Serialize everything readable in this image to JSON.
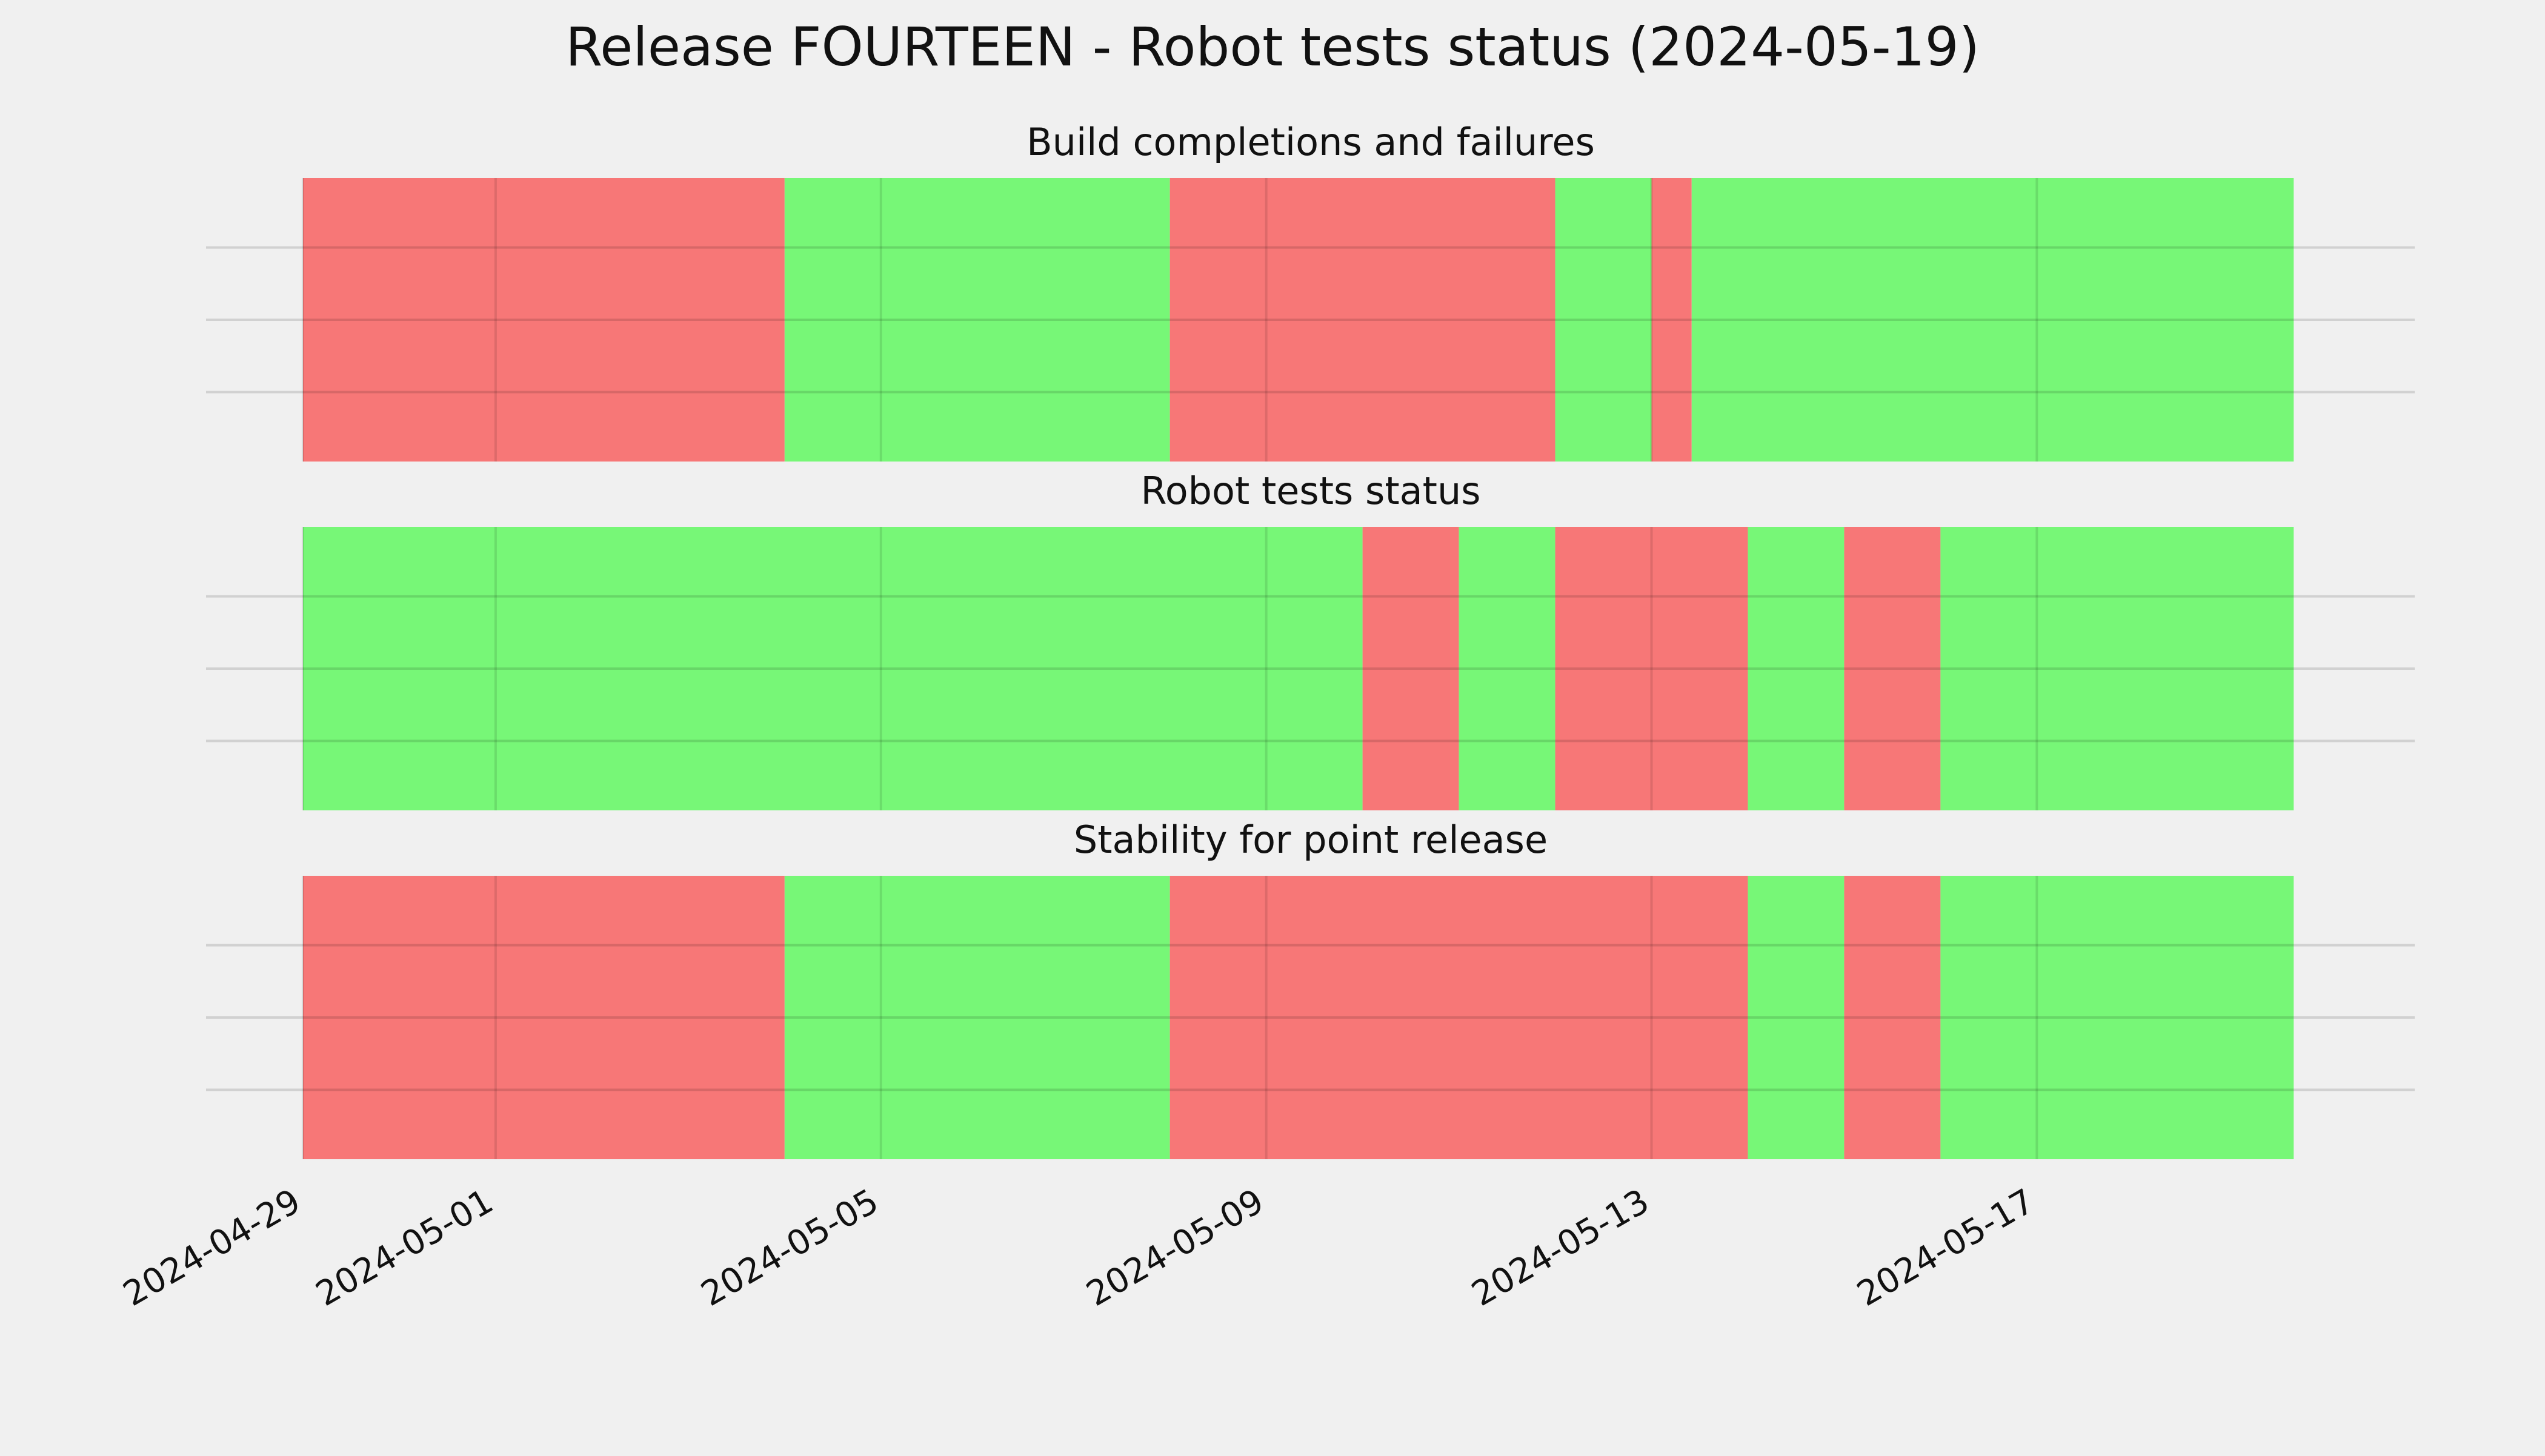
{
  "chart_data": {
    "type": "timeline",
    "title": "Release FOURTEEN - Robot tests status (2024-05-19)",
    "x_range": [
      "2024-04-29",
      "2024-05-19T22:00"
    ],
    "x_ticks": [
      "2024-04-29",
      "2024-05-01",
      "2024-05-05",
      "2024-05-09",
      "2024-05-13",
      "2024-05-17"
    ],
    "grid": true,
    "status_colors": {
      "pass": "#77f777",
      "fail": "#f77777"
    },
    "panels": [
      {
        "title": "Build completions and failures",
        "segments": [
          {
            "start": "2024-04-29T00:00",
            "end": "2024-05-04T00:00",
            "status": "fail"
          },
          {
            "start": "2024-05-04T00:00",
            "end": "2024-05-08T00:00",
            "status": "pass"
          },
          {
            "start": "2024-05-08T00:00",
            "end": "2024-05-12T00:00",
            "status": "fail"
          },
          {
            "start": "2024-05-12T00:00",
            "end": "2024-05-13T00:00",
            "status": "pass"
          },
          {
            "start": "2024-05-13T00:00",
            "end": "2024-05-13T10:00",
            "status": "fail"
          },
          {
            "start": "2024-05-13T10:00",
            "end": "2024-05-19T16:00",
            "status": "pass"
          }
        ]
      },
      {
        "title": "Robot tests status",
        "segments": [
          {
            "start": "2024-04-29T00:00",
            "end": "2024-05-10T00:00",
            "status": "pass"
          },
          {
            "start": "2024-05-10T00:00",
            "end": "2024-05-11T00:00",
            "status": "fail"
          },
          {
            "start": "2024-05-11T00:00",
            "end": "2024-05-12T00:00",
            "status": "pass"
          },
          {
            "start": "2024-05-12T00:00",
            "end": "2024-05-14T00:00",
            "status": "fail"
          },
          {
            "start": "2024-05-14T00:00",
            "end": "2024-05-15T00:00",
            "status": "pass"
          },
          {
            "start": "2024-05-15T00:00",
            "end": "2024-05-16T00:00",
            "status": "fail"
          },
          {
            "start": "2024-05-16T00:00",
            "end": "2024-05-19T16:00",
            "status": "pass"
          }
        ]
      },
      {
        "title": "Stability for point release",
        "segments": [
          {
            "start": "2024-04-29T00:00",
            "end": "2024-05-04T00:00",
            "status": "fail"
          },
          {
            "start": "2024-05-04T00:00",
            "end": "2024-05-08T00:00",
            "status": "pass"
          },
          {
            "start": "2024-05-08T00:00",
            "end": "2024-05-14T00:00",
            "status": "fail"
          },
          {
            "start": "2024-05-14T00:00",
            "end": "2024-05-15T00:00",
            "status": "pass"
          },
          {
            "start": "2024-05-15T00:00",
            "end": "2024-05-16T00:00",
            "status": "fail"
          },
          {
            "start": "2024-05-16T00:00",
            "end": "2024-05-19T16:00",
            "status": "pass"
          }
        ]
      }
    ]
  }
}
